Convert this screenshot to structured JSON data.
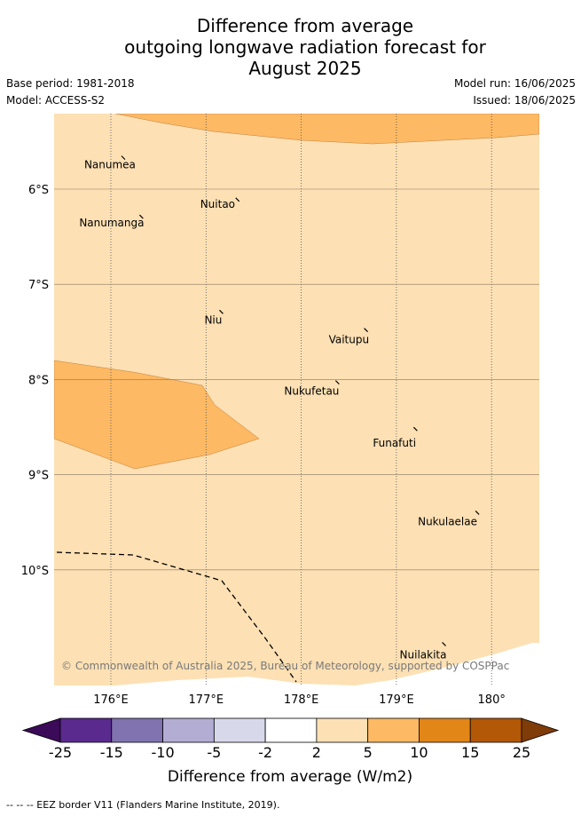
{
  "title": {
    "line1": "Difference from average",
    "line2": "outgoing longwave radiation forecast for",
    "line3": "August 2025"
  },
  "meta": {
    "base_period": "Base period: 1981-2018",
    "model": "Model: ACCESS-S2",
    "model_run": "Model run: 16/06/2025",
    "issued": "Issued: 18/06/2025"
  },
  "map": {
    "lon_ticks": [
      {
        "value": 176,
        "label": "176°E"
      },
      {
        "value": 177,
        "label": "177°E"
      },
      {
        "value": 178,
        "label": "178°E"
      },
      {
        "value": 179,
        "label": "179°E"
      },
      {
        "value": 180,
        "label": "180°"
      }
    ],
    "lat_ticks": [
      {
        "value": -6,
        "label": "6°S"
      },
      {
        "value": -7,
        "label": "7°S"
      },
      {
        "value": -8,
        "label": "8°S"
      },
      {
        "value": -9,
        "label": "9°S"
      },
      {
        "value": -10,
        "label": "10°S"
      }
    ],
    "islands": [
      {
        "name": "Nanumea",
        "lon": 176.13,
        "lat": -5.67
      },
      {
        "name": "Nuitao",
        "lon": 177.33,
        "lat": -6.11
      },
      {
        "name": "Nanumanga",
        "lon": 176.32,
        "lat": -6.29
      },
      {
        "name": "Niu",
        "lon": 177.16,
        "lat": -7.29
      },
      {
        "name": "Vaitupu",
        "lon": 178.68,
        "lat": -7.48
      },
      {
        "name": "Nukufetau",
        "lon": 178.38,
        "lat": -8.03
      },
      {
        "name": "Funafuti",
        "lon": 179.2,
        "lat": -8.52
      },
      {
        "name": "Nukulaelae",
        "lon": 179.85,
        "lat": -9.4
      },
      {
        "name": "Nuilakita",
        "lon": 179.5,
        "lat": -10.78
      }
    ],
    "copyright": "© Commonwealth of Australia 2025, Bureau of Meteorology, supported by COSPPac",
    "colors": {
      "band_2_5": "#fde0b4",
      "band_5_10": "#fdb963",
      "eez": "#000000",
      "grid": "#555555"
    }
  },
  "legend": {
    "title": "Difference from average (W/m2)",
    "ticks": [
      "-25",
      "-15",
      "-10",
      "-5",
      "-2",
      "2",
      "5",
      "10",
      "15",
      "25"
    ],
    "colors": [
      "#3b0a58",
      "#5a2a8f",
      "#8172b0",
      "#b3acd3",
      "#d8d8eb",
      "#ffffff",
      "#fde0b4",
      "#fdb963",
      "#e28618",
      "#b35806",
      "#7f3b08"
    ]
  },
  "footnote": "-- -- -- EEZ border V11 (Flanders Marine Institute, 2019)."
}
